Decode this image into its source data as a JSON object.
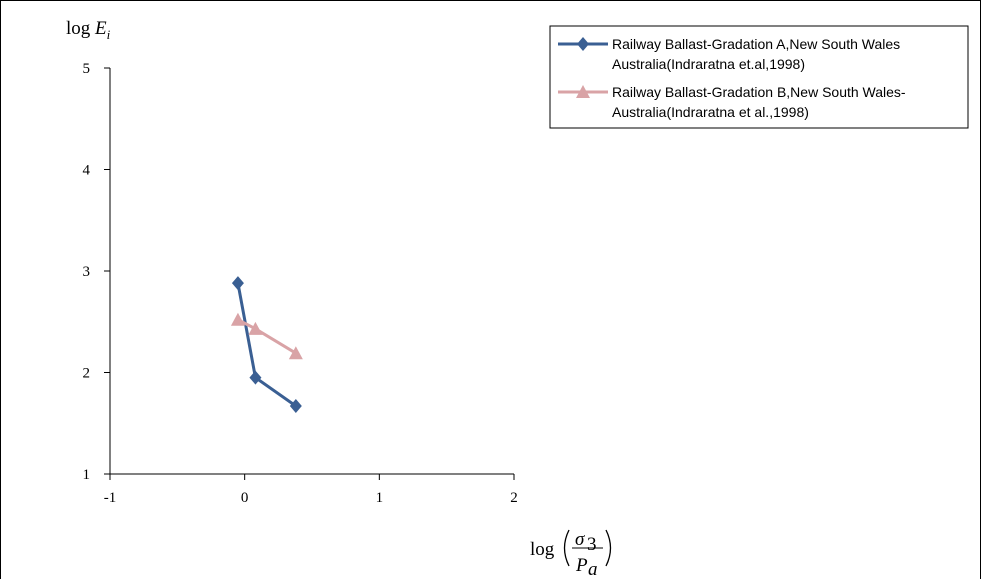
{
  "chart_data": {
    "type": "line",
    "title": "",
    "xlabel": "log(σ3/Pa)",
    "ylabel": "log Ei",
    "xlim": [
      -1,
      2
    ],
    "ylim": [
      1,
      5
    ],
    "x_ticks": [
      "-1",
      "0",
      "1",
      "2"
    ],
    "y_ticks": [
      "1",
      "2",
      "3",
      "4",
      "5"
    ],
    "grid": false,
    "legend_position": "top-right",
    "series": [
      {
        "name": "Railway Ballast-Gradation A,New South Wales Australia(Indraratna et.al,1998)",
        "name_lines": [
          "Railway Ballast-Gradation A,New South Wales",
          "Australia(Indraratna et.al,1998)"
        ],
        "marker": "diamond",
        "color": "#3A5F93",
        "x": [
          -0.05,
          0.08,
          0.38
        ],
        "y": [
          2.88,
          1.95,
          1.67
        ]
      },
      {
        "name": "Railway Ballast-Gradation B,New South Wales-Australia(Indraratna et al.,1998)",
        "name_lines": [
          "Railway Ballast-Gradation B,New South Wales-",
          "Australia(Indraratna et al.,1998)"
        ],
        "marker": "triangle",
        "color": "#D9A3A6",
        "x": [
          -0.05,
          0.08,
          0.38
        ],
        "y": [
          2.52,
          2.43,
          2.19
        ]
      }
    ]
  }
}
